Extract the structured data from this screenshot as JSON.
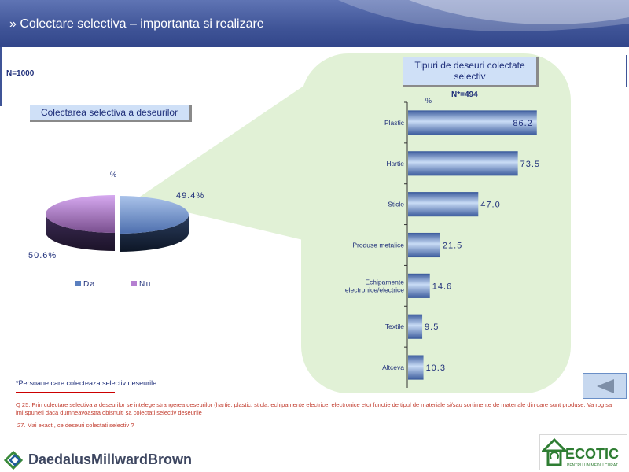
{
  "header": {
    "title": "» Colectare selectiva – importanta si realizare"
  },
  "sample_label": "N=1000",
  "left_chart_title": "Colectarea selectiva a deseurilor",
  "right_chart_title": "Tipuri de deseuri colectate selectiv",
  "right_sample_label": "N*=494",
  "footnote": "*Persoane care colecteaza selectiv deseurile",
  "question_25": "Q 25. Prin colectare selectiva a deseurilor se intelege strangerea deseurilor (hartie, plastic, sticla, echipamente electrice, electronice etc)   functie de tipul de materiale si/sau sortimente de materiale din care sunt produse. Va rog sa imi spuneti daca dumneavoastra obisnuiti sa colectati selectiv deseurile",
  "question_27": "27. Mai exact , ce deseuri colectati selectiv ?",
  "logos": {
    "left": "DaedalusMillwardBrown",
    "right": "ECOTIC",
    "right_tagline": "PENTRU UN MEDIU CURAT"
  },
  "colors": {
    "header": "#3f5497",
    "green_panel": "#e1f1d6",
    "bar": "#5a7fbf",
    "pie_da": "#5a7fbf",
    "pie_nu": "#7a4f8f",
    "text_blue": "#1f2f7a",
    "footnote_red": "#c0392b"
  },
  "icons": {
    "nav": "back-arrow-icon"
  },
  "chart_data": [
    {
      "type": "pie",
      "unit_label": "%",
      "categories": [
        "Da",
        "Nu"
      ],
      "values": [
        49.4,
        50.6
      ],
      "value_labels": [
        "49.4%",
        "50.6%"
      ],
      "legend": "bottom"
    },
    {
      "type": "bar",
      "orientation": "horizontal",
      "unit_label": "%",
      "categories": [
        "Plastic",
        "Hartie",
        "Sticle",
        "Produse metalice",
        "Echipamente electronice/electrice",
        "Textile",
        "Altceva"
      ],
      "values": [
        86.2,
        73.5,
        47.0,
        21.5,
        14.6,
        9.5,
        10.3
      ],
      "value_labels": [
        "86.2",
        "73.5",
        "47.0",
        "21.5",
        "14.6",
        "9.5",
        "10.3"
      ],
      "xlim": [
        0,
        100
      ]
    }
  ]
}
